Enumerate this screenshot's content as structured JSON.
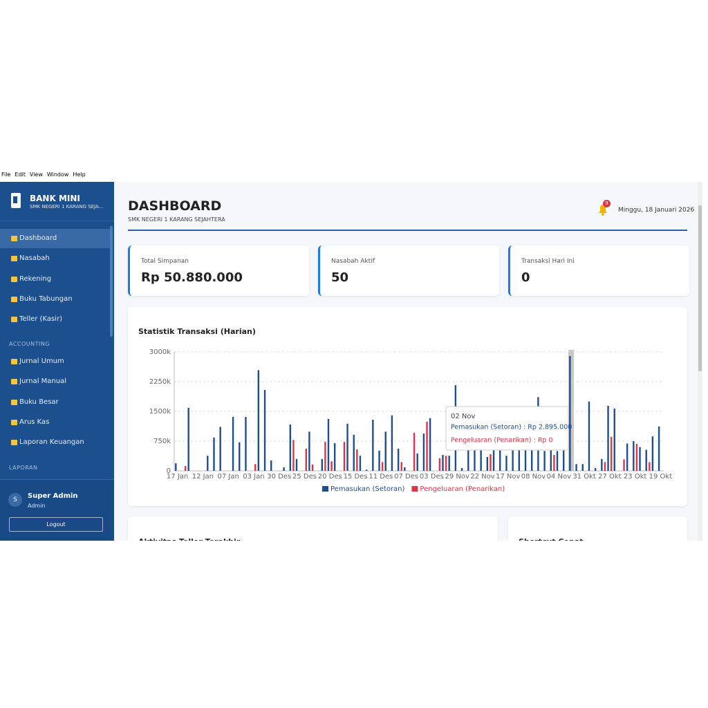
{
  "menu": [
    "File",
    "Edit",
    "View",
    "Window",
    "Help"
  ],
  "sidebar": {
    "brand": "BANK MINI",
    "school": "SMK NEGERI 1 KARANG SEJA...",
    "main_items": [
      "Dashboard",
      "Nasabah",
      "Rekening",
      "Buku Tabungan",
      "Teller (Kasir)"
    ],
    "accounting_title": "ACCOUNTING",
    "accounting_items": [
      "Jurnal Umum",
      "Jurnal Manual",
      "Buku Besar",
      "Arus Kas",
      "Laporan Keuangan"
    ],
    "laporan_title": "LAPORAN",
    "user": {
      "avatar": "S",
      "name": "Super Admin",
      "role": "Admin"
    },
    "logout": "Logout"
  },
  "header": {
    "title": "DASHBOARD",
    "subtitle": "SMK NEGERI 1 KARANG SEJAHTERA",
    "badge": "9",
    "date": "Minggu, 18 Januari 2026"
  },
  "cards": [
    {
      "label": "Total Simpanan",
      "value": "Rp 50.880.000"
    },
    {
      "label": "Nasabah Aktif",
      "value": "50"
    },
    {
      "label": "Transaksi Hari Ini",
      "value": "0"
    }
  ],
  "panels": [
    "Aktivitas Teller Terakhir",
    "Shortcut Cepat"
  ],
  "chart_data": {
    "type": "bar",
    "title": "Statistik Transaksi (Harian)",
    "categories": [
      "17 Jan",
      null,
      null,
      null,
      "12 Jan",
      null,
      null,
      null,
      "07 Jan",
      null,
      null,
      null,
      "03 Jan",
      null,
      null,
      null,
      "30 Des",
      null,
      null,
      null,
      "25 Des",
      null,
      null,
      null,
      "20 Des",
      null,
      null,
      null,
      "15 Des",
      null,
      null,
      null,
      "11 Des",
      null,
      null,
      null,
      "07 Des",
      null,
      null,
      null,
      "03 Des",
      null,
      null,
      null,
      "29 Nov",
      null,
      null,
      null,
      "22 Nov",
      null,
      null,
      null,
      "17 Nov",
      null,
      null,
      null,
      "08 Nov",
      null,
      null,
      null,
      "04 Nov",
      null,
      null,
      null,
      "31 Okt",
      null,
      null,
      null,
      "27 Okt",
      null,
      null,
      null,
      "23 Okt",
      null,
      null,
      null,
      "19 Okt"
    ],
    "series": [
      {
        "name": "Pemasukan (Setoran)",
        "color": "#1f4e8c",
        "values": [
          190000,
          0,
          1590000,
          0,
          0,
          380000,
          840000,
          1110000,
          0,
          1360000,
          720000,
          1360000,
          0,
          2540000,
          2040000,
          260000,
          0,
          90000,
          1170000,
          300000,
          0,
          990000,
          0,
          300000,
          1310000,
          700000,
          0,
          1190000,
          910000,
          380000,
          30000,
          1290000,
          510000,
          990000,
          1400000,
          560000,
          90000,
          0,
          440000,
          940000,
          1330000,
          0,
          400000,
          380000,
          2160000,
          70000,
          700000,
          700000,
          600000,
          350000,
          700000,
          600000,
          380000,
          600000,
          700000,
          600000,
          700000,
          1860000,
          500000,
          600000,
          500000,
          600000,
          2895000,
          170000,
          170000,
          1750000,
          70000,
          300000,
          1640000,
          1570000,
          0,
          690000,
          750000,
          600000,
          530000,
          870000,
          1120000
        ]
      },
      {
        "name": "Pengeluaran (Penarikan)",
        "color": "#dc3545",
        "values": [
          0,
          120000,
          0,
          0,
          0,
          0,
          0,
          0,
          0,
          0,
          0,
          0,
          170000,
          0,
          0,
          0,
          0,
          0,
          780000,
          0,
          560000,
          160000,
          0,
          730000,
          240000,
          0,
          730000,
          0,
          540000,
          0,
          0,
          0,
          220000,
          0,
          0,
          220000,
          0,
          960000,
          0,
          1240000,
          0,
          320000,
          380000,
          0,
          0,
          0,
          0,
          0,
          0,
          420000,
          0,
          0,
          0,
          0,
          0,
          0,
          0,
          0,
          0,
          400000,
          0,
          0,
          0,
          0,
          0,
          0,
          0,
          220000,
          860000,
          0,
          290000,
          0,
          680000,
          0,
          220000,
          0,
          0
        ]
      }
    ],
    "ylim": [
      0,
      3000000
    ],
    "yticks": [
      0,
      {
        "value": 750000,
        "label": "750k"
      },
      {
        "value": 1500000,
        "label": "1500k"
      },
      {
        "value": 2250000,
        "label": "2250k"
      },
      {
        "value": 3000000,
        "label": "3000k"
      }
    ],
    "grid": true,
    "legend": "bottom",
    "tooltip": {
      "title": "02 Nov",
      "lines": [
        "Pemasukan (Setoran) : Rp 2.895.000",
        "Pengeluaran (Penarikan) : Rp 0"
      ]
    }
  }
}
